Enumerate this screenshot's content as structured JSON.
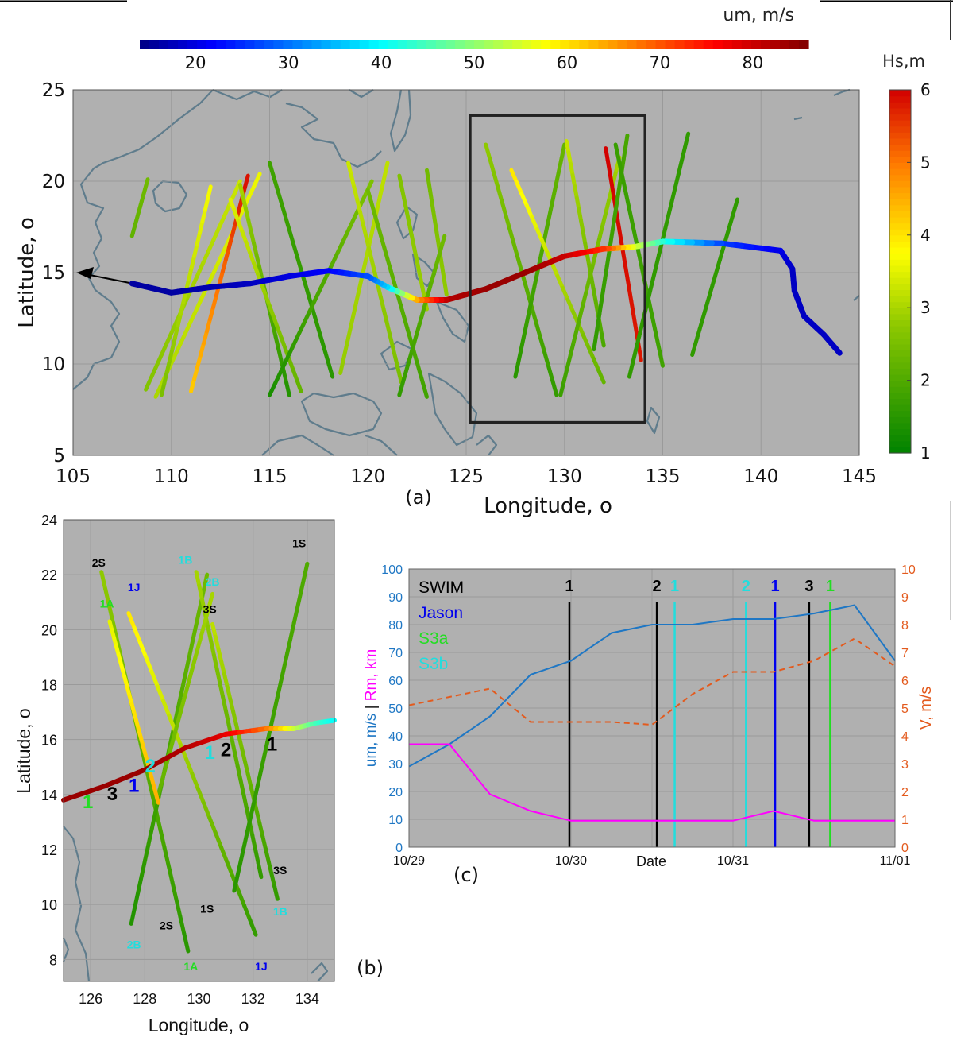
{
  "colors": {
    "map_bg": "#b0b0b0",
    "land": "#5f7c8c",
    "track_dark": "#0a0a8c",
    "box": "#222222",
    "um_line": "#1f77c4",
    "v_line": "#e35a1d",
    "r_line": "#ff00ff",
    "swim": "#000000",
    "jason": "#0000ee",
    "s3a": "#22dd22",
    "s3b": "#22dddd"
  },
  "panels": {
    "a": "(a)",
    "b": "(b)",
    "c": "(c)"
  },
  "chart_data": [
    {
      "type": "scatter",
      "panel": "a",
      "xlabel": "Longitude, o",
      "ylabel": "Latitude, o",
      "xlim": [
        105,
        145
      ],
      "ylim": [
        5,
        25
      ],
      "xticks": [
        105,
        110,
        115,
        120,
        125,
        130,
        135,
        140,
        145
      ],
      "yticks": [
        5,
        10,
        15,
        20,
        25
      ],
      "grid": true,
      "colorbar_um": {
        "label": "um, m/s",
        "range": [
          14,
          86
        ],
        "ticks": [
          20,
          30,
          40,
          50,
          60,
          70,
          80
        ]
      },
      "colorbar_hs": {
        "label": "Hs,m",
        "range": [
          1,
          6
        ],
        "ticks": [
          1,
          2,
          3,
          4,
          5,
          6
        ]
      },
      "storm_track": [
        {
          "lon": 144.0,
          "lat": 10.6,
          "um": 18
        },
        {
          "lon": 143.2,
          "lat": 11.6,
          "um": 18
        },
        {
          "lon": 142.2,
          "lat": 12.6,
          "um": 18
        },
        {
          "lon": 141.7,
          "lat": 14.0,
          "um": 18
        },
        {
          "lon": 141.6,
          "lat": 15.2,
          "um": 18
        },
        {
          "lon": 141.0,
          "lat": 16.2,
          "um": 20
        },
        {
          "lon": 138.0,
          "lat": 16.6,
          "um": 26
        },
        {
          "lon": 135.0,
          "lat": 16.7,
          "um": 42
        },
        {
          "lon": 133.5,
          "lat": 16.4,
          "um": 55
        },
        {
          "lon": 132.0,
          "lat": 16.3,
          "um": 72
        },
        {
          "lon": 130.0,
          "lat": 15.9,
          "um": 80
        },
        {
          "lon": 128.0,
          "lat": 15.0,
          "um": 84
        },
        {
          "lon": 126.0,
          "lat": 14.1,
          "um": 84
        },
        {
          "lon": 124.0,
          "lat": 13.5,
          "um": 82
        },
        {
          "lon": 122.5,
          "lat": 13.5,
          "um": 66
        },
        {
          "lon": 121.0,
          "lat": 14.2,
          "um": 38
        },
        {
          "lon": 120.0,
          "lat": 14.8,
          "um": 28
        },
        {
          "lon": 118.0,
          "lat": 15.1,
          "um": 22
        },
        {
          "lon": 116.0,
          "lat": 14.8,
          "um": 20
        },
        {
          "lon": 114.0,
          "lat": 14.4,
          "um": 18
        },
        {
          "lon": 112.0,
          "lat": 14.2,
          "um": 17
        },
        {
          "lon": 110.0,
          "lat": 13.9,
          "um": 16
        },
        {
          "lon": 108.0,
          "lat": 14.4,
          "um": 16
        }
      ],
      "satellite_tracks": [
        {
          "from": [
            108.7,
            8.6
          ],
          "to": [
            113.5,
            20.0
          ],
          "hs_start": 2.6,
          "hs_end": 3.3
        },
        {
          "from": [
            109.2,
            8.2
          ],
          "to": [
            114.5,
            20.4
          ],
          "hs_start": 3.0,
          "hs_end": 3.6
        },
        {
          "from": [
            111.0,
            8.5
          ],
          "to": [
            113.9,
            20.3
          ],
          "hs_start": 4.2,
          "hs_end": 5.9
        },
        {
          "from": [
            109.5,
            8.3
          ],
          "to": [
            112.0,
            19.7
          ],
          "hs_start": 2.5,
          "hs_end": 3.7
        },
        {
          "from": [
            113.5,
            19.8
          ],
          "to": [
            116.0,
            8.3
          ],
          "hs_start": 3.0,
          "hs_end": 1.4
        },
        {
          "from": [
            115.0,
            21.0
          ],
          "to": [
            118.2,
            9.3
          ],
          "hs_start": 1.8,
          "hs_end": 1.5
        },
        {
          "from": [
            113.0,
            19.0
          ],
          "to": [
            116.6,
            8.5
          ],
          "hs_start": 3.5,
          "hs_end": 2.2
        },
        {
          "from": [
            115.0,
            8.3
          ],
          "to": [
            120.2,
            20.0
          ],
          "hs_start": 1.3,
          "hs_end": 2.6
        },
        {
          "from": [
            118.6,
            9.5
          ],
          "to": [
            121.0,
            21.0
          ],
          "hs_start": 2.8,
          "hs_end": 3.2
        },
        {
          "from": [
            119.0,
            21.0
          ],
          "to": [
            121.7,
            9.0
          ],
          "hs_start": 3.3,
          "hs_end": 2.5
        },
        {
          "from": [
            120.0,
            19.5
          ],
          "to": [
            123.0,
            8.2
          ],
          "hs_start": 2.4,
          "hs_end": 1.8
        },
        {
          "from": [
            121.6,
            20.3
          ],
          "to": [
            123.0,
            13.0
          ],
          "hs_start": 2.6,
          "hs_end": 2.9
        },
        {
          "from": [
            123.0,
            20.6
          ],
          "to": [
            124.0,
            13.8
          ],
          "hs_start": 2.4,
          "hs_end": 2.8
        },
        {
          "from": [
            121.6,
            8.3
          ],
          "to": [
            123.9,
            17.0
          ],
          "hs_start": 1.6,
          "hs_end": 2.4
        },
        {
          "from": [
            126.0,
            22.0
          ],
          "to": [
            129.6,
            8.3
          ],
          "hs_start": 2.8,
          "hs_end": 1.6
        },
        {
          "from": [
            127.5,
            9.3
          ],
          "to": [
            130.0,
            22.0
          ],
          "hs_start": 1.5,
          "hs_end": 2.3
        },
        {
          "from": [
            127.3,
            20.6
          ],
          "to": [
            132.0,
            9.0
          ],
          "hs_start": 4.0,
          "hs_end": 2.2
        },
        {
          "from": [
            130.1,
            22.2
          ],
          "to": [
            132.0,
            11.0
          ],
          "hs_start": 3.3,
          "hs_end": 1.9
        },
        {
          "from": [
            129.8,
            8.3
          ],
          "to": [
            132.8,
            21.3
          ],
          "hs_start": 1.7,
          "hs_end": 3.0
        },
        {
          "from": [
            132.1,
            21.8
          ],
          "to": [
            133.9,
            10.2
          ],
          "hs_start": 6.0,
          "hs_end": 5.8
        },
        {
          "from": [
            131.5,
            10.8
          ],
          "to": [
            133.2,
            22.5
          ],
          "hs_start": 1.6,
          "hs_end": 1.9
        },
        {
          "from": [
            132.6,
            22.0
          ],
          "to": [
            135.0,
            9.9
          ],
          "hs_start": 1.7,
          "hs_end": 1.8
        },
        {
          "from": [
            133.3,
            9.3
          ],
          "to": [
            136.3,
            22.6
          ],
          "hs_start": 1.6,
          "hs_end": 1.6
        },
        {
          "from": [
            136.5,
            10.5
          ],
          "to": [
            138.8,
            19.0
          ],
          "hs_start": 1.6,
          "hs_end": 1.6
        },
        {
          "from": [
            108.0,
            17.0
          ],
          "to": [
            108.8,
            20.1
          ],
          "hs_start": 2.2,
          "hs_end": 2.4
        }
      ],
      "box": {
        "lon": [
          125.2,
          134.1
        ],
        "lat": [
          6.8,
          23.6
        ]
      }
    },
    {
      "type": "scatter",
      "panel": "b",
      "xlabel": "Longitude, o",
      "ylabel": "Latitude, o",
      "xlim": [
        125.0,
        135.0
      ],
      "ylim": [
        7.2,
        24.0
      ],
      "xticks": [
        126,
        128,
        130,
        132,
        134
      ],
      "yticks": [
        8,
        10,
        12,
        14,
        16,
        18,
        20,
        22,
        24
      ],
      "grid": true,
      "storm_track": [
        {
          "lon": 125.0,
          "lat": 13.8,
          "um": 84
        },
        {
          "lon": 126.5,
          "lat": 14.3,
          "um": 84
        },
        {
          "lon": 128.0,
          "lat": 14.9,
          "um": 84
        },
        {
          "lon": 129.5,
          "lat": 15.7,
          "um": 82
        },
        {
          "lon": 131.0,
          "lat": 16.2,
          "um": 78
        },
        {
          "lon": 132.5,
          "lat": 16.4,
          "um": 68
        },
        {
          "lon": 133.5,
          "lat": 16.4,
          "um": 55
        },
        {
          "lon": 134.3,
          "lat": 16.6,
          "um": 45
        },
        {
          "lon": 135.0,
          "lat": 16.7,
          "um": 40
        }
      ],
      "satellite_tracks": [
        {
          "from": [
            126.4,
            22.1
          ],
          "to": [
            129.6,
            8.3
          ],
          "hs_start": 2.8,
          "hs_end": 1.5
        },
        {
          "from": [
            127.5,
            9.3
          ],
          "to": [
            130.3,
            22.0
          ],
          "hs_start": 1.4,
          "hs_end": 2.4
        },
        {
          "from": [
            127.4,
            20.6
          ],
          "to": [
            132.1,
            8.9
          ],
          "hs_start": 4.0,
          "hs_end": 1.6
        },
        {
          "from": [
            129.9,
            22.1
          ],
          "to": [
            132.3,
            11.0
          ],
          "hs_start": 3.0,
          "hs_end": 1.6
        },
        {
          "from": [
            128.5,
            14.0
          ],
          "to": [
            130.5,
            21.3
          ],
          "hs_start": 2.2,
          "hs_end": 3.0
        },
        {
          "from": [
            130.5,
            20.2
          ],
          "to": [
            132.9,
            10.2
          ],
          "hs_start": 3.2,
          "hs_end": 1.6
        },
        {
          "from": [
            131.3,
            10.5
          ],
          "to": [
            134.0,
            22.4
          ],
          "hs_start": 1.5,
          "hs_end": 2.0
        },
        {
          "from": [
            126.7,
            20.3
          ],
          "to": [
            128.5,
            13.7
          ],
          "hs_start": 3.5,
          "hs_end": 4.5
        }
      ],
      "track_labels": [
        {
          "text": "2S",
          "lon": 126.3,
          "lat": 22.3,
          "sensor": "swim"
        },
        {
          "text": "1J",
          "lon": 127.6,
          "lat": 21.4,
          "sensor": "jason"
        },
        {
          "text": "1A",
          "lon": 126.6,
          "lat": 20.8,
          "sensor": "s3a"
        },
        {
          "text": "1B",
          "lon": 129.5,
          "lat": 22.4,
          "sensor": "s3b"
        },
        {
          "text": "2B",
          "lon": 130.5,
          "lat": 21.6,
          "sensor": "s3b"
        },
        {
          "text": "3S",
          "lon": 130.4,
          "lat": 20.6,
          "sensor": "swim"
        },
        {
          "text": "1S",
          "lon": 133.7,
          "lat": 23.0,
          "sensor": "swim"
        },
        {
          "text": "3S",
          "lon": 133.0,
          "lat": 11.1,
          "sensor": "swim"
        },
        {
          "text": "1B",
          "lon": 133.0,
          "lat": 9.6,
          "sensor": "s3b"
        },
        {
          "text": "1S",
          "lon": 130.3,
          "lat": 9.7,
          "sensor": "swim"
        },
        {
          "text": "2S",
          "lon": 128.8,
          "lat": 9.1,
          "sensor": "swim"
        },
        {
          "text": "2B",
          "lon": 127.6,
          "lat": 8.4,
          "sensor": "s3b"
        },
        {
          "text": "1J",
          "lon": 132.3,
          "lat": 7.6,
          "sensor": "jason"
        },
        {
          "text": "1A",
          "lon": 129.7,
          "lat": 7.6,
          "sensor": "s3a"
        }
      ],
      "crossing_labels": [
        {
          "text": "1",
          "lon": 125.9,
          "lat": 13.5,
          "sensor": "s3a"
        },
        {
          "text": "3",
          "lon": 126.8,
          "lat": 13.8,
          "sensor": "swim"
        },
        {
          "text": "1",
          "lon": 127.6,
          "lat": 14.1,
          "sensor": "jason"
        },
        {
          "text": "2",
          "lon": 128.2,
          "lat": 14.8,
          "sensor": "s3b"
        },
        {
          "text": "1",
          "lon": 130.4,
          "lat": 15.3,
          "sensor": "s3b"
        },
        {
          "text": "2",
          "lon": 131.0,
          "lat": 15.4,
          "sensor": "swim"
        },
        {
          "text": "1",
          "lon": 132.7,
          "lat": 15.6,
          "sensor": "swim"
        }
      ]
    },
    {
      "type": "line",
      "panel": "c",
      "xlabel": "Date",
      "xtick_labels": [
        "10/29",
        "10/30",
        "10/31",
        "11/01"
      ],
      "ylabel_left": "um, m/s | Rm, km",
      "ylabel_right": "V, m/s",
      "ylim_left": [
        0,
        100
      ],
      "ylim_right": [
        0,
        10
      ],
      "yticks_left": [
        0,
        10,
        20,
        30,
        40,
        50,
        60,
        70,
        80,
        90,
        100
      ],
      "yticks_right": [
        0,
        1,
        2,
        3,
        4,
        5,
        6,
        7,
        8,
        9,
        10
      ],
      "grid": true,
      "series": [
        {
          "name": "um",
          "axis": "left",
          "x": [
            0,
            0.25,
            0.5,
            0.75,
            1.0,
            1.25,
            1.5,
            1.75,
            2.0,
            2.25,
            2.5,
            2.75,
            3.0
          ],
          "values": [
            29,
            37,
            47,
            62,
            67,
            77,
            80,
            80,
            82,
            82,
            84,
            87,
            67
          ]
        },
        {
          "name": "Rm",
          "axis": "left",
          "x": [
            0,
            0.25,
            0.5,
            0.75,
            1.0,
            1.25,
            1.5,
            1.75,
            2.0,
            2.25,
            2.5,
            2.75,
            3.0
          ],
          "values": [
            37,
            37,
            19,
            13,
            9.5,
            9.5,
            9.5,
            9.5,
            9.5,
            13,
            9.5,
            9.5,
            9.5
          ]
        },
        {
          "name": "V",
          "axis": "right",
          "x": [
            0,
            0.25,
            0.5,
            0.75,
            1.0,
            1.25,
            1.5,
            1.75,
            2.0,
            2.25,
            2.5,
            2.75,
            3.0
          ],
          "values": [
            5.1,
            5.4,
            5.7,
            4.5,
            4.5,
            4.5,
            4.4,
            5.5,
            6.3,
            6.3,
            6.7,
            7.5,
            6.5
          ]
        }
      ],
      "markers": [
        {
          "text": "1",
          "x": 0.99,
          "sensor": "swim"
        },
        {
          "text": "2",
          "x": 1.53,
          "sensor": "swim"
        },
        {
          "text": "1",
          "x": 1.64,
          "sensor": "s3b"
        },
        {
          "text": "2",
          "x": 2.08,
          "sensor": "s3b"
        },
        {
          "text": "1",
          "x": 2.26,
          "sensor": "jason"
        },
        {
          "text": "3",
          "x": 2.47,
          "sensor": "swim"
        },
        {
          "text": "1",
          "x": 2.6,
          "sensor": "s3a"
        }
      ],
      "legend": [
        {
          "label": "SWIM",
          "sensor": "swim"
        },
        {
          "label": "Jason",
          "sensor": "jason"
        },
        {
          "label": "S3a",
          "sensor": "s3a"
        },
        {
          "label": "S3b",
          "sensor": "s3b"
        }
      ]
    }
  ]
}
